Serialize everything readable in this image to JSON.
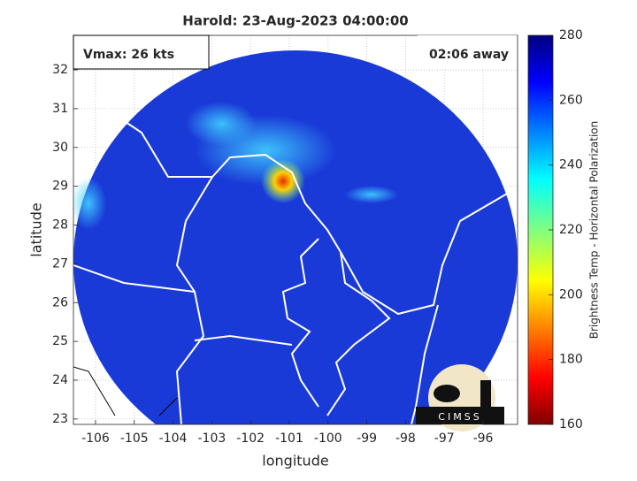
{
  "chart_data": {
    "type": "map",
    "title": "Harold: 23-Aug-2023 04:00:00",
    "annotations": [
      "Vmax: 26 kts",
      "02:06 away"
    ],
    "x_label": "longitude",
    "y_label": "latitude",
    "xlim": [
      -106.57,
      -95.11
    ],
    "ylim": [
      22.86,
      32.89
    ],
    "xticks": [
      -106,
      -105,
      -104,
      -103,
      -102,
      -101,
      -100,
      -99,
      -98,
      -97,
      -96
    ],
    "yticks": [
      23,
      24,
      25,
      26,
      27,
      28,
      29,
      30,
      31,
      32
    ],
    "grid": true,
    "colorbar": {
      "label": "Brightness Temp - Horizontal Polarization",
      "lim": [
        160,
        280
      ],
      "ticks": [
        160,
        180,
        200,
        220,
        240,
        260,
        280
      ]
    },
    "logo": "CIMSS"
  }
}
